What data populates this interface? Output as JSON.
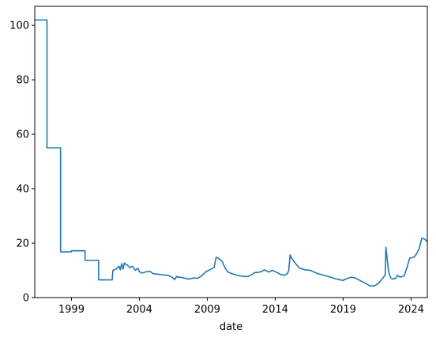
{
  "chart_data": {
    "type": "line",
    "title": "",
    "xlabel": "date",
    "ylabel": "",
    "xlim": [
      1996.3,
      2025.2
    ],
    "ylim": [
      0,
      107
    ],
    "x_ticks": [
      {
        "value": 1999,
        "label": "1999"
      },
      {
        "value": 2004,
        "label": "2004"
      },
      {
        "value": 2009,
        "label": "2009"
      },
      {
        "value": 2014,
        "label": "2014"
      },
      {
        "value": 2019,
        "label": "2019"
      },
      {
        "value": 2024,
        "label": "2024"
      }
    ],
    "y_ticks": [
      {
        "value": 0,
        "label": "0"
      },
      {
        "value": 20,
        "label": "20"
      },
      {
        "value": 40,
        "label": "40"
      },
      {
        "value": 60,
        "label": "60"
      },
      {
        "value": 80,
        "label": "80"
      },
      {
        "value": 100,
        "label": "100"
      }
    ],
    "grid": false,
    "legend": "none",
    "line_color": "#1f77b4",
    "series": [
      {
        "x": [
          1996.3,
          1997.2,
          1997.2,
          1998.2,
          1998.2,
          1999.0,
          1999.0,
          2000.0,
          2000.0,
          2001.0,
          2001.0,
          2002.0,
          2002.05,
          2002.3,
          2002.5,
          2002.6,
          2002.7,
          2002.8,
          2002.9,
          2003.0,
          2003.1,
          2003.3,
          2003.5,
          2003.7,
          2003.9,
          2004.0,
          2004.2,
          2004.5,
          2004.8,
          2005.0,
          2005.2,
          2005.5,
          2005.8,
          2006.1,
          2006.4,
          2006.6,
          2006.75,
          2006.85,
          2007.0,
          2007.3,
          2007.6,
          2008.0,
          2008.3,
          2008.6,
          2008.9,
          2009.1,
          2009.3,
          2009.5,
          2009.65,
          2009.75,
          2009.9,
          2010.1,
          2010.3,
          2010.5,
          2010.8,
          2011.2,
          2011.6,
          2012.0,
          2012.3,
          2012.5,
          2012.8,
          2013.0,
          2013.2,
          2013.5,
          2013.8,
          2014.1,
          2014.4,
          2014.7,
          2014.9,
          2015.0,
          2015.1,
          2015.2,
          2015.5,
          2015.8,
          2016.2,
          2016.6,
          2016.9,
          2017.2,
          2017.6,
          2018.0,
          2018.4,
          2018.7,
          2019.0,
          2019.3,
          2019.6,
          2019.9,
          2020.2,
          2020.5,
          2020.8,
          2021.0,
          2021.3,
          2021.6,
          2021.9,
          2022.1,
          2022.15,
          2022.25,
          2022.35,
          2022.5,
          2022.7,
          2022.9,
          2023.0,
          2023.2,
          2023.5,
          2023.7,
          2023.9,
          2024.2,
          2024.4,
          2024.6,
          2024.8,
          2025.0,
          2025.2
        ],
        "y": [
          102,
          102,
          55,
          55,
          16.8,
          16.8,
          17.2,
          17.2,
          13.7,
          13.7,
          6.5,
          6.5,
          10,
          10.5,
          11.5,
          10.2,
          12.5,
          10.5,
          12.7,
          12.2,
          12,
          11,
          11.5,
          10,
          10.8,
          9.5,
          9,
          9.5,
          9.6,
          8.8,
          8.7,
          8.5,
          8.3,
          8.2,
          7.5,
          6.6,
          7.8,
          7.5,
          7.5,
          7.2,
          6.8,
          7.2,
          7.1,
          8,
          9.5,
          10,
          10.5,
          11,
          14.8,
          14.6,
          14.2,
          13.2,
          11,
          9.5,
          8.8,
          8.2,
          7.8,
          7.7,
          8.5,
          9.2,
          9.3,
          9.6,
          10.2,
          9.4,
          10,
          9.3,
          8.5,
          8.2,
          8.8,
          10,
          15.7,
          14.5,
          12.5,
          10.8,
          10.2,
          10,
          9.3,
          8.7,
          8.2,
          7.6,
          7,
          6.6,
          6.3,
          7,
          7.5,
          7.2,
          6.4,
          5.6,
          4.8,
          4.3,
          4.3,
          5.2,
          7,
          8.3,
          18.5,
          14,
          9.5,
          7.2,
          6.8,
          7.2,
          8.2,
          7.5,
          8,
          11,
          14.5,
          14.8,
          16,
          18,
          21.8,
          21.5,
          20.5
        ]
      }
    ]
  }
}
